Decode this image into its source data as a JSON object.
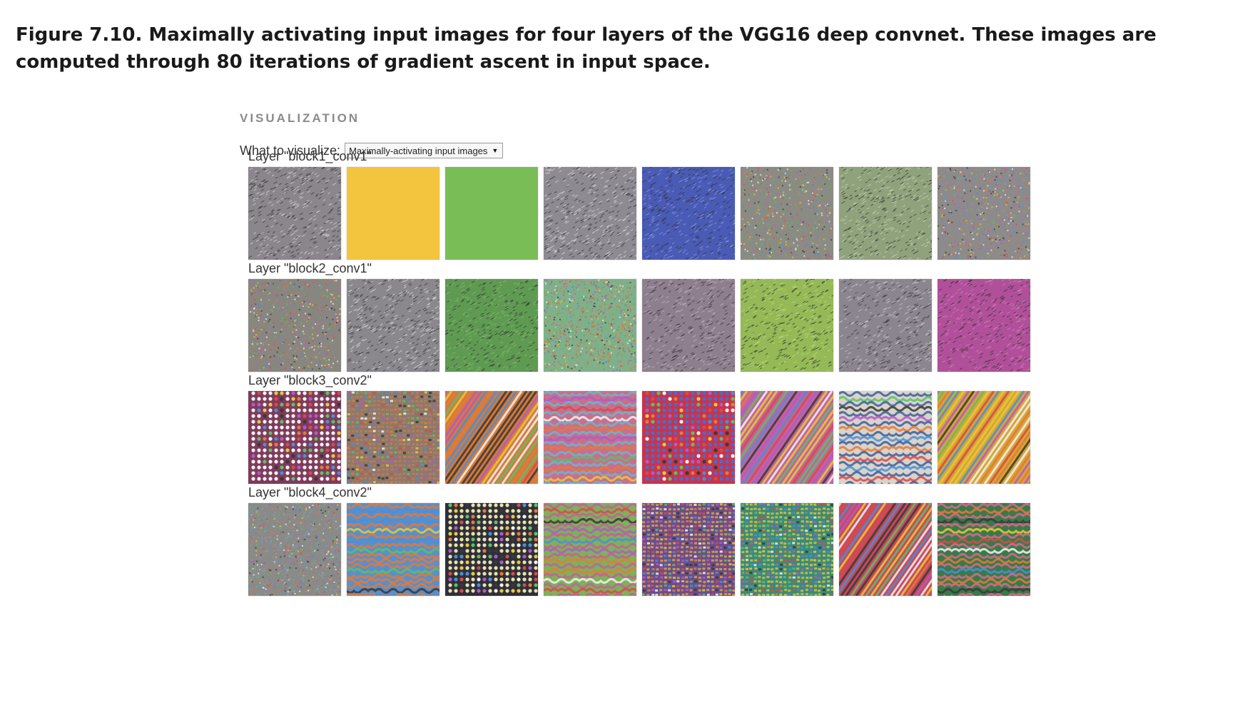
{
  "caption": "Figure 7.10. Maximally activating input images for four layers of the VGG16 deep convnet. These images are computed through 80 iterations of gradient ascent in input space.",
  "visualization": {
    "heading": "VISUALIZATION",
    "control_label": "What to visualize:",
    "select_value": "Maximally-activating input images",
    "layers": [
      {
        "label": "Layer \"block1_conv1\"",
        "tiles": [
          {
            "kind": "noise",
            "base": "#8a868c",
            "accent": "#d9d9d9"
          },
          {
            "kind": "solid",
            "base": "#f3c43d",
            "accent": "#f7cf4f"
          },
          {
            "kind": "solid",
            "base": "#79bd57",
            "accent": "#84c663"
          },
          {
            "kind": "noise",
            "base": "#8e8a92",
            "accent": "#e2e2e2"
          },
          {
            "kind": "noise",
            "base": "#4a5bb5",
            "accent": "#8fa0e6"
          },
          {
            "kind": "confetti",
            "base": "#8c8a84",
            "accent": "#6fa36a"
          },
          {
            "kind": "noise",
            "base": "#8fa27c",
            "accent": "#c9d7b9"
          },
          {
            "kind": "confetti",
            "base": "#8f8a8a",
            "accent": "#7d8fa5"
          }
        ]
      },
      {
        "label": "Layer \"block2_conv1\"",
        "tiles": [
          {
            "kind": "confetti",
            "base": "#8a8580",
            "accent": "#6d9a6b"
          },
          {
            "kind": "noise",
            "base": "#8a888c",
            "accent": "#e0e0e0"
          },
          {
            "kind": "noise",
            "base": "#5f9a52",
            "accent": "#86c070"
          },
          {
            "kind": "confetti",
            "base": "#7fb08a",
            "accent": "#e26a3b"
          },
          {
            "kind": "noise",
            "base": "#8e7f8f",
            "accent": "#c2b6c5"
          },
          {
            "kind": "noise",
            "base": "#94b956",
            "accent": "#c4dd7a"
          },
          {
            "kind": "noise",
            "base": "#8b8590",
            "accent": "#cfcad5"
          },
          {
            "kind": "noise",
            "base": "#b1509a",
            "accent": "#d782bf"
          }
        ]
      },
      {
        "label": "Layer \"block3_conv2\"",
        "tiles": [
          {
            "kind": "dots",
            "base": "#7e3b5a",
            "accent": "#f2f2f2"
          },
          {
            "kind": "grid",
            "base": "#8b7a6b",
            "accent": "#c27a58"
          },
          {
            "kind": "stripes",
            "base": "#d67a3a",
            "accent": "#3ea59b"
          },
          {
            "kind": "waves",
            "base": "#c86f8c",
            "accent": "#6fb5c9"
          },
          {
            "kind": "dots",
            "base": "#c8344a",
            "accent": "#4a6bd1"
          },
          {
            "kind": "stripes",
            "base": "#c2649c",
            "accent": "#6ab0c4"
          },
          {
            "kind": "waves",
            "base": "#d9d3c9",
            "accent": "#3b5f9b"
          },
          {
            "kind": "stripes",
            "base": "#d6a634",
            "accent": "#7a4ea0"
          }
        ]
      },
      {
        "label": "Layer \"block4_conv2\"",
        "tiles": [
          {
            "kind": "confetti",
            "base": "#8a8a88",
            "accent": "#7fa0b2"
          },
          {
            "kind": "waves",
            "base": "#5b8fc9",
            "accent": "#e07a3a"
          },
          {
            "kind": "dots",
            "base": "#2f2f3a",
            "accent": "#e8e2a8"
          },
          {
            "kind": "waves",
            "base": "#7fb05a",
            "accent": "#c45f9b"
          },
          {
            "kind": "grid",
            "base": "#6a4e8a",
            "accent": "#e2a244"
          },
          {
            "kind": "grid",
            "base": "#3b8a7a",
            "accent": "#d7c43b"
          },
          {
            "kind": "stripes",
            "base": "#c94a5a",
            "accent": "#5fa0c8"
          },
          {
            "kind": "waves",
            "base": "#3a7a4a",
            "accent": "#d96a8a"
          }
        ]
      }
    ]
  }
}
